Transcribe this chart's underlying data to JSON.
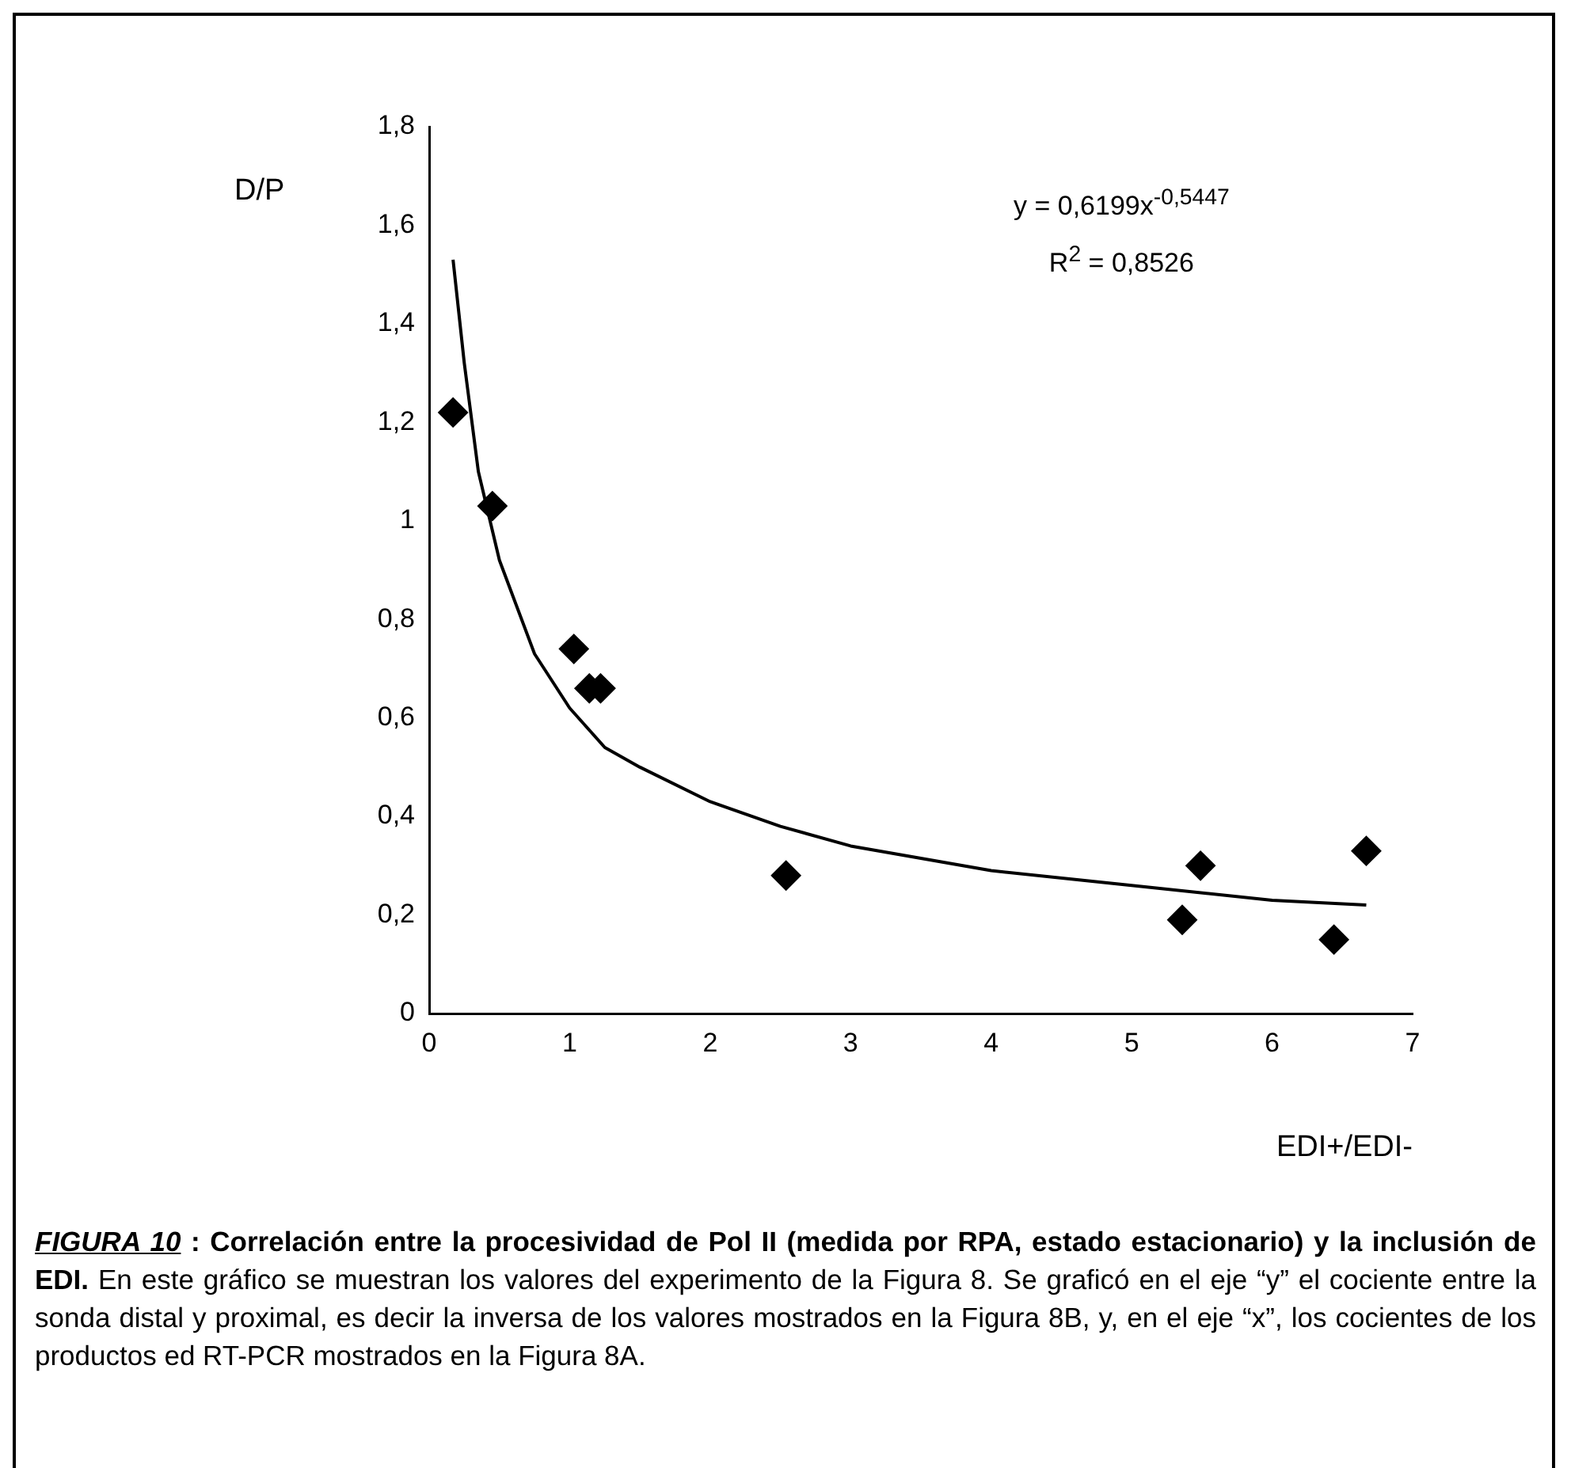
{
  "chart_data": {
    "type": "scatter",
    "ylabel": "D/P",
    "xlabel": "EDI+/EDI-",
    "xlim": [
      0,
      7
    ],
    "xticks": [
      0,
      1,
      2,
      3,
      4,
      5,
      6,
      7
    ],
    "ylim": [
      0,
      1.8
    ],
    "yticks": [
      0,
      {
        "value": 0.2,
        "label": "0,2"
      },
      {
        "value": 0.4,
        "label": "0,4"
      },
      {
        "value": 0.6,
        "label": "0,6"
      },
      {
        "value": 0.8,
        "label": "0,8"
      },
      1,
      {
        "value": 1.2,
        "label": "1,2"
      },
      {
        "value": 1.4,
        "label": "1,4"
      },
      {
        "value": 1.6,
        "label": "1,6"
      },
      {
        "value": 1.8,
        "label": "1,8"
      }
    ],
    "grid": false,
    "legend": false,
    "marker": "diamond",
    "series": [
      {
        "color": "#000000",
        "x": [
          0.17,
          0.45,
          1.03,
          1.14,
          1.22,
          2.54,
          5.36,
          5.49,
          6.44,
          6.67
        ],
        "values": [
          1.22,
          1.03,
          0.74,
          0.66,
          0.66,
          0.28,
          0.19,
          0.3,
          0.15,
          0.33
        ]
      },
      {
        "type": "line",
        "color": "#000000",
        "marker": "none",
        "x": [
          0.17,
          0.25,
          0.35,
          0.5,
          0.75,
          1,
          1.25,
          1.5,
          2,
          2.5,
          3,
          4,
          5,
          6,
          6.67
        ],
        "values": [
          1.53,
          1.32,
          1.1,
          0.92,
          0.73,
          0.62,
          0.54,
          0.5,
          0.43,
          0.38,
          0.34,
          0.29,
          0.26,
          0.23,
          0.22
        ]
      }
    ],
    "annotations": [
      "y = 0,6199x$^{-0,5447}$",
      "R$^{2}$ = 0,8526",
      "FIGURA 10",
      ": Correlación entre la procesividad de Pol II (medida por RPA, estado estacionario) y la inclusión de EDI.",
      "En este gráfico se muestran los valores del experimento de la Figura 8. Se graficó en el eje “y” el cociente entre la sonda distal y proximal, es decir la inversa de los valores mostrados en la Figura 8B, y, en el eje “x”, los cocientes de los productos ed RT-PCR mostrados en la Figura 8A."
    ]
  }
}
